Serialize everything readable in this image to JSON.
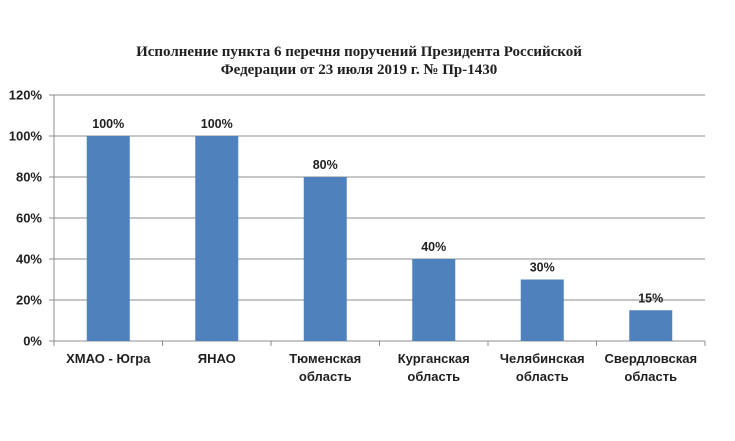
{
  "chart_data": {
    "type": "bar",
    "title": [
      "Исполнение пункта 6 перечня поручений Президента Российской",
      "Федерации от  23 июля 2019 г. № Пр-1430"
    ],
    "categories": [
      [
        "ХМАО - Югра"
      ],
      [
        "ЯНАО"
      ],
      [
        "Тюменская",
        "область"
      ],
      [
        "Курганская",
        "область"
      ],
      [
        "Челябинская",
        "область"
      ],
      [
        "Свердловская",
        "область"
      ]
    ],
    "values": [
      100,
      100,
      80,
      40,
      30,
      15
    ],
    "data_labels": [
      "100%",
      "100%",
      "80%",
      "40%",
      "30%",
      "15%"
    ],
    "y_ticks": [
      "0%",
      "20%",
      "40%",
      "60%",
      "80%",
      "100%",
      "120%"
    ],
    "ylim": [
      0,
      120
    ],
    "grid": true,
    "bar_color": "#4f81bd",
    "grid_color": "#8c8c8c"
  }
}
